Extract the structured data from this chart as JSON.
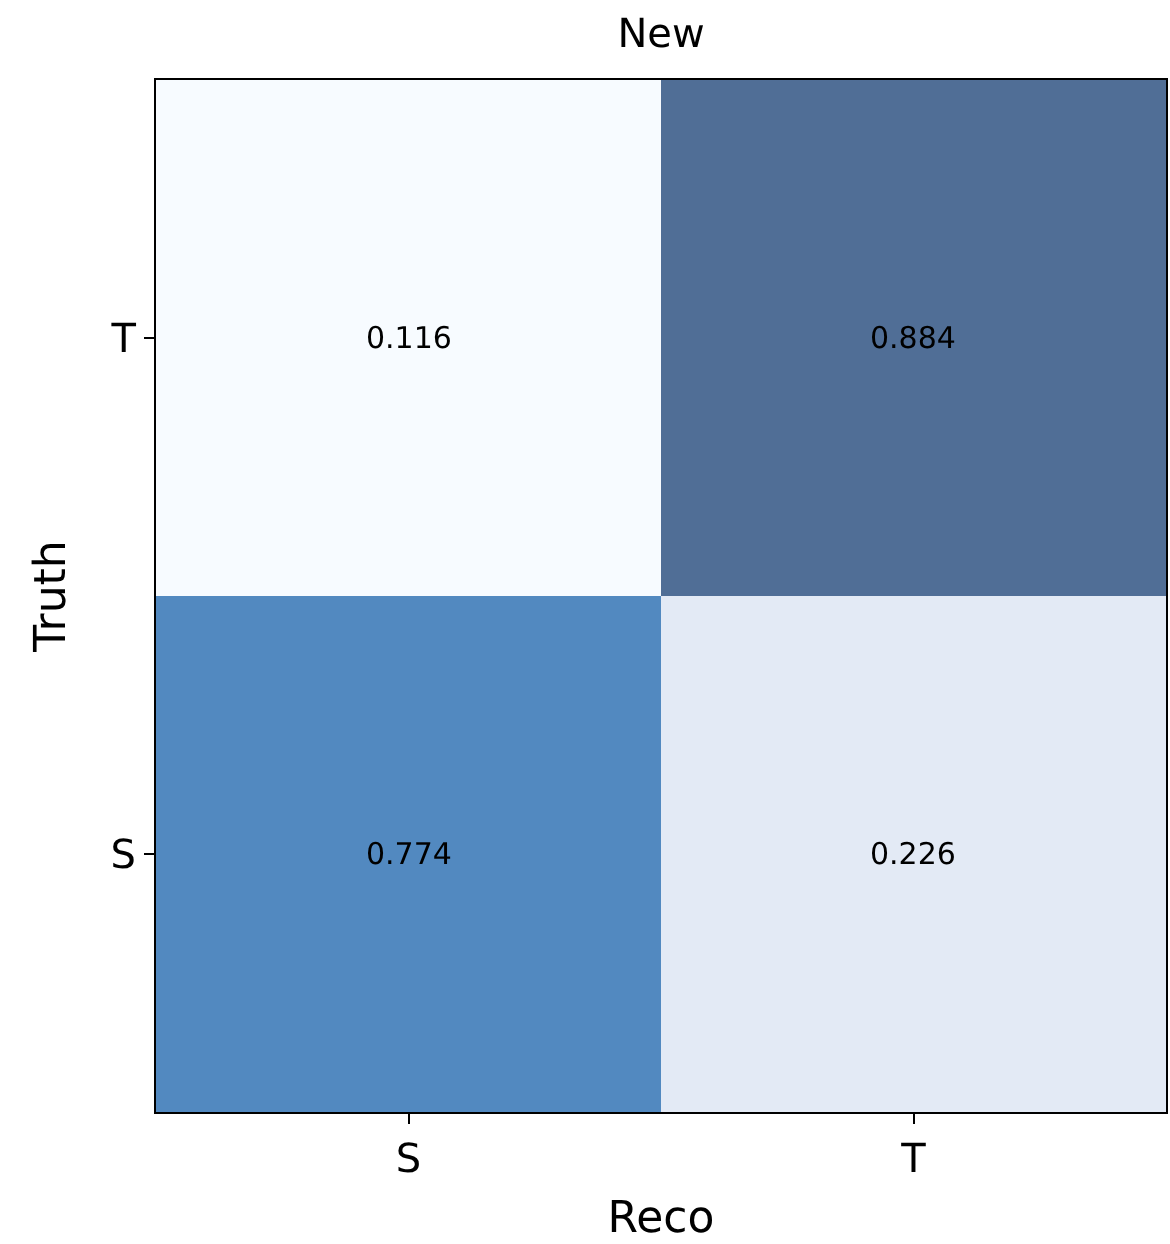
{
  "chart_data": {
    "type": "heatmap",
    "title": "New",
    "xlabel": "Reco",
    "ylabel": "Truth",
    "categories": [
      "S",
      "T"
    ],
    "y_categories": [
      "T",
      "S"
    ],
    "cells": [
      [
        0.116,
        0.884
      ],
      [
        0.774,
        0.226
      ]
    ],
    "colors": [
      [
        "#f7fbff",
        "#506e96"
      ],
      [
        "#5289c0",
        "#e3eaf5"
      ]
    ],
    "data_labels": true
  }
}
